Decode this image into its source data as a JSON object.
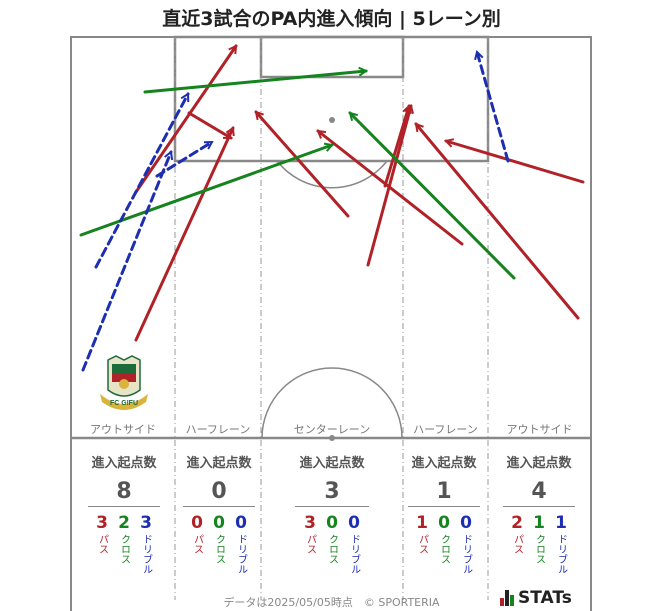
{
  "title": "直近3試合のPA内進入傾向 | 5レーン別",
  "lanes": [
    {
      "label": "アウトサイド",
      "stat_header": "進入起点数",
      "total": "8",
      "pass": "3",
      "cross": "2",
      "dribble": "3"
    },
    {
      "label": "ハーフレーン",
      "stat_header": "進入起点数",
      "total": "0",
      "pass": "0",
      "cross": "0",
      "dribble": "0"
    },
    {
      "label": "センターレーン",
      "stat_header": "進入起点数",
      "total": "3",
      "pass": "3",
      "cross": "0",
      "dribble": "0"
    },
    {
      "label": "ハーフレーン",
      "stat_header": "進入起点数",
      "total": "1",
      "pass": "1",
      "cross": "0",
      "dribble": "0"
    },
    {
      "label": "アウトサイド",
      "stat_header": "進入起点数",
      "total": "4",
      "pass": "2",
      "cross": "1",
      "dribble": "1"
    }
  ],
  "type_labels": {
    "pass": "パス",
    "cross": "クロス",
    "dribble": "ドリブル"
  },
  "colors": {
    "pass": "#b02227",
    "cross": "#15831e",
    "dribble": "#1d2fb0",
    "pitch_line": "#888888",
    "lane_line": "#999999"
  },
  "logo_text": "FC GIFU",
  "footer": "データは2025/05/05時点　© SPORTERIA",
  "brand": "STATs",
  "chart_data": {
    "type": "arrow-map",
    "arrows": [
      {
        "kind": "pass",
        "from": [
          136,
          192
        ],
        "to": [
          236,
          46
        ]
      },
      {
        "kind": "pass",
        "from": [
          136,
          340
        ],
        "to": [
          233,
          128
        ]
      },
      {
        "kind": "pass",
        "from": [
          189,
          113
        ],
        "to": [
          231,
          138
        ]
      },
      {
        "kind": "pass",
        "from": [
          348,
          216
        ],
        "to": [
          256,
          112
        ]
      },
      {
        "kind": "pass",
        "from": [
          462,
          244
        ],
        "to": [
          318,
          131
        ]
      },
      {
        "kind": "pass",
        "from": [
          368,
          265
        ],
        "to": [
          411,
          106
        ]
      },
      {
        "kind": "pass",
        "from": [
          385,
          186
        ],
        "to": [
          409,
          106
        ]
      },
      {
        "kind": "pass",
        "from": [
          578,
          318
        ],
        "to": [
          416,
          124
        ]
      },
      {
        "kind": "pass",
        "from": [
          583,
          182
        ],
        "to": [
          446,
          141
        ]
      },
      {
        "kind": "cross",
        "from": [
          145,
          92
        ],
        "to": [
          366,
          71
        ]
      },
      {
        "kind": "cross",
        "from": [
          81,
          235
        ],
        "to": [
          332,
          145
        ]
      },
      {
        "kind": "cross",
        "from": [
          514,
          278
        ],
        "to": [
          350,
          113
        ]
      },
      {
        "kind": "dribble",
        "from": [
          83,
          370
        ],
        "to": [
          171,
          152
        ]
      },
      {
        "kind": "dribble",
        "from": [
          96,
          267
        ],
        "to": [
          188,
          94
        ]
      },
      {
        "kind": "dribble",
        "from": [
          157,
          176
        ],
        "to": [
          212,
          142
        ]
      },
      {
        "kind": "dribble",
        "from": [
          508,
          161
        ],
        "to": [
          477,
          52
        ]
      }
    ]
  }
}
